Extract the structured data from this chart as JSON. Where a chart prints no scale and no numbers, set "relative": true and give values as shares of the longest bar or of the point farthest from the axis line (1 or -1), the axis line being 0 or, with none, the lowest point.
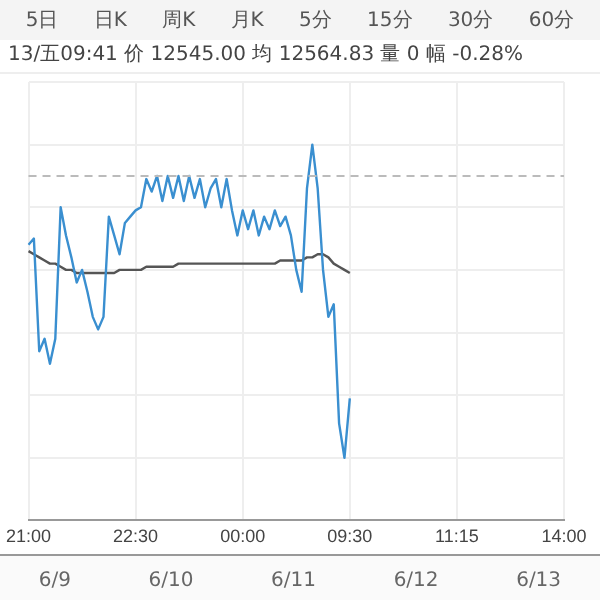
{
  "chart_data": {
    "type": "line",
    "relative": true,
    "grid": true,
    "legend": false,
    "tick_labels": "x",
    "marker": "none",
    "categories": [
      "21:00",
      null,
      null,
      null,
      null,
      null,
      null,
      null,
      null,
      null,
      null,
      null,
      null,
      null,
      null,
      null,
      null,
      null,
      null,
      null,
      "22:30",
      null,
      null,
      null,
      null,
      null,
      null,
      null,
      null,
      null,
      null,
      null,
      null,
      null,
      null,
      null,
      null,
      null,
      null,
      null,
      "00:00",
      null,
      null,
      null,
      null,
      null,
      null,
      null,
      null,
      null,
      null,
      null,
      null,
      null,
      null,
      null,
      null,
      null,
      null,
      null,
      "09:30",
      null,
      null,
      null,
      null,
      null,
      null,
      null,
      null,
      null,
      null,
      null,
      null,
      null,
      null,
      null,
      null,
      null,
      null,
      null,
      "11:15",
      null,
      null,
      null,
      null,
      null,
      null,
      null,
      null,
      null,
      null,
      null,
      null,
      null,
      null,
      null,
      null,
      null,
      null,
      null,
      "14:00"
    ],
    "series": [
      {
        "color": "#3a8fd0",
        "values": [
          0.68,
          0.7,
          0.34,
          0.38,
          0.3,
          0.38,
          0.8,
          0.71,
          0.64,
          0.56,
          0.6,
          0.53,
          0.45,
          0.41,
          0.45,
          0.77,
          0.71,
          0.65,
          0.75,
          0.77,
          0.79,
          0.8,
          0.89,
          0.85,
          0.9,
          0.82,
          0.9,
          0.83,
          0.9,
          0.82,
          0.9,
          0.83,
          0.89,
          0.8,
          0.86,
          0.89,
          0.8,
          0.89,
          0.79,
          0.71,
          0.79,
          0.73,
          0.79,
          0.71,
          0.77,
          0.73,
          0.79,
          0.74,
          0.77,
          0.71,
          0.6,
          0.53,
          0.86,
          1,
          0.86,
          0.6,
          0.45,
          0.49,
          0.11,
          0,
          0.19,
          null,
          null,
          null,
          null,
          null,
          null,
          null,
          null,
          null,
          null,
          null,
          null,
          null,
          null,
          null,
          null,
          null,
          null,
          null,
          null,
          null,
          null,
          null,
          null,
          null,
          null,
          null,
          null,
          null,
          null,
          null,
          null,
          null,
          null,
          null,
          null,
          null,
          null,
          null,
          null
        ]
      },
      {
        "color": "#555555",
        "values": [
          0.66,
          0.65,
          0.64,
          0.63,
          0.62,
          0.62,
          0.61,
          0.6,
          0.6,
          0.59,
          0.59,
          0.59,
          0.59,
          0.59,
          0.59,
          0.59,
          0.59,
          0.6,
          0.6,
          0.6,
          0.6,
          0.6,
          0.61,
          0.61,
          0.61,
          0.61,
          0.61,
          0.61,
          0.62,
          0.62,
          0.62,
          0.62,
          0.62,
          0.62,
          0.62,
          0.62,
          0.62,
          0.62,
          0.62,
          0.62,
          0.62,
          0.62,
          0.62,
          0.62,
          0.62,
          0.62,
          0.62,
          0.63,
          0.63,
          0.63,
          0.63,
          0.63,
          0.64,
          0.64,
          0.65,
          0.65,
          0.64,
          0.62,
          0.61,
          0.6,
          0.59,
          null,
          null,
          null,
          null,
          null,
          null,
          null,
          null,
          null,
          null,
          null,
          null,
          null,
          null,
          null,
          null,
          null,
          null,
          null,
          null,
          null,
          null,
          null,
          null,
          null,
          null,
          null,
          null,
          null,
          null,
          null,
          null,
          null,
          null,
          null,
          null,
          null,
          null,
          null,
          null
        ]
      }
    ],
    "ref_lines": [
      {
        "axis": "y",
        "value": 0.9,
        "color": "#bbbbbb",
        "line_style": "dashed"
      }
    ],
    "annotations": [
      "5日",
      "日K",
      "周K",
      "月K",
      "5分",
      "15分",
      "30分",
      "60分",
      "13/五09:41 价 12545.00 均 12564.83 量 0 幅 -0.28%",
      "6/9",
      "6/10",
      "6/11",
      "6/12",
      "6/13"
    ]
  }
}
